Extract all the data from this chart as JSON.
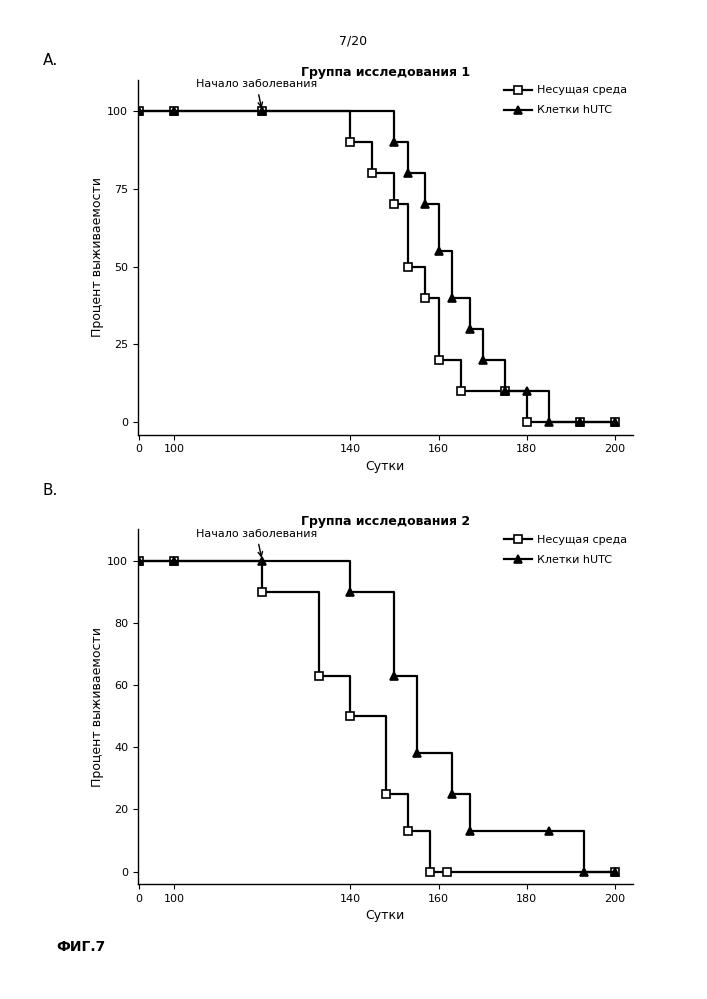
{
  "page_label": "7/20",
  "fig_label": "ФИГ.7",
  "panel_A": {
    "title": "Группа исследования 1",
    "annotation": "Начало заболевания",
    "xlabel": "Сутки",
    "ylabel": "Процент выживаемости",
    "yticks": [
      0,
      25,
      50,
      75,
      100
    ],
    "series1_label": "Несущая среда",
    "series2_label": "Клетки hUTC",
    "series1_x": [
      0,
      100,
      120,
      140,
      145,
      150,
      153,
      157,
      160,
      165,
      175,
      180,
      192,
      200
    ],
    "series1_y": [
      100,
      100,
      100,
      90,
      80,
      70,
      50,
      40,
      20,
      10,
      10,
      0,
      0,
      0
    ],
    "series2_x": [
      0,
      100,
      120,
      150,
      153,
      157,
      160,
      163,
      167,
      170,
      175,
      180,
      185,
      192,
      200
    ],
    "series2_y": [
      100,
      100,
      100,
      90,
      80,
      70,
      55,
      40,
      30,
      20,
      10,
      10,
      0,
      0,
      0
    ],
    "arrow_day": 120
  },
  "panel_B": {
    "title": "Группа исследования 2",
    "annotation": "Начало заболевания",
    "xlabel": "Сутки",
    "ylabel": "Процент выживаемости",
    "yticks": [
      0,
      20,
      40,
      60,
      80,
      100
    ],
    "series1_label": "Несущая среда",
    "series2_label": "Клетки hUTC",
    "series1_x": [
      0,
      100,
      120,
      133,
      140,
      148,
      153,
      158,
      162,
      200
    ],
    "series1_y": [
      100,
      100,
      90,
      63,
      50,
      25,
      13,
      0,
      0,
      0
    ],
    "series2_x": [
      0,
      100,
      120,
      140,
      150,
      155,
      163,
      167,
      185,
      193,
      200
    ],
    "series2_y": [
      100,
      100,
      100,
      90,
      63,
      38,
      25,
      13,
      13,
      0,
      0
    ],
    "arrow_day": 120
  },
  "color": "#000000",
  "linewidth": 1.6,
  "markersize": 6,
  "fontsize_title": 9,
  "fontsize_label": 9,
  "fontsize_tick": 8,
  "fontsize_legend": 8,
  "fontsize_annotation": 8,
  "fontsize_page": 9,
  "fontsize_figlabel": 10,
  "x_break": 100,
  "x_start": 0,
  "x_end": 200,
  "xtick_labels": [
    "0",
    "100",
    "140",
    "160",
    "180",
    "200"
  ],
  "xtick_real": [
    0,
    100,
    140,
    160,
    180,
    200
  ]
}
